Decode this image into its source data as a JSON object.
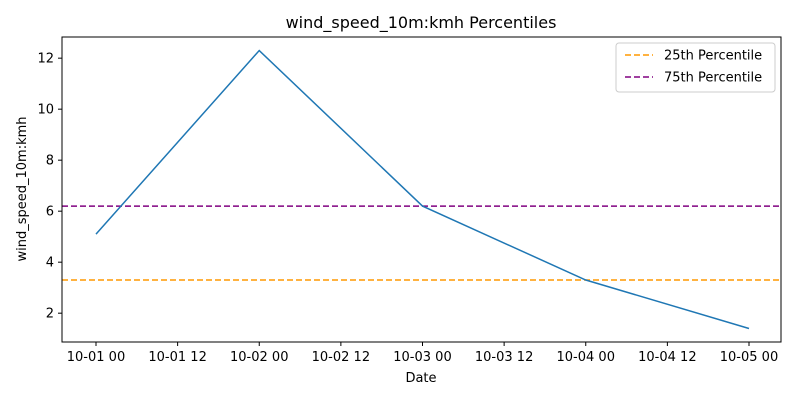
{
  "chart_data": {
    "type": "line",
    "title": "wind_speed_10m:kmh Percentiles",
    "xlabel": "Date",
    "ylabel": "wind_speed_10m:kmh",
    "x": [
      "2024-10-01T00:00",
      "2024-10-02T00:00",
      "2024-10-03T00:00",
      "2024-10-04T00:00",
      "2024-10-05T00:00"
    ],
    "series": [
      {
        "values": [
          5.1,
          12.3,
          6.2,
          3.3,
          1.4
        ],
        "color": "#1f77b4"
      }
    ],
    "reference_lines": [
      {
        "name": "25th Percentile",
        "value": 3.3,
        "color": "#ff9900",
        "style": "dashed"
      },
      {
        "name": "75th Percentile",
        "value": 6.2,
        "color": "#800080",
        "style": "dashed"
      }
    ],
    "x_ticks": [
      "10-01 00",
      "10-01 12",
      "10-02 00",
      "10-02 12",
      "10-03 00",
      "10-03 12",
      "10-04 00",
      "10-04 12",
      "10-05 00"
    ],
    "y_ticks": [
      2,
      4,
      6,
      8,
      10,
      12
    ],
    "ylim": [
      0.87,
      12.83
    ],
    "grid": false,
    "legend_position": "top-right"
  }
}
